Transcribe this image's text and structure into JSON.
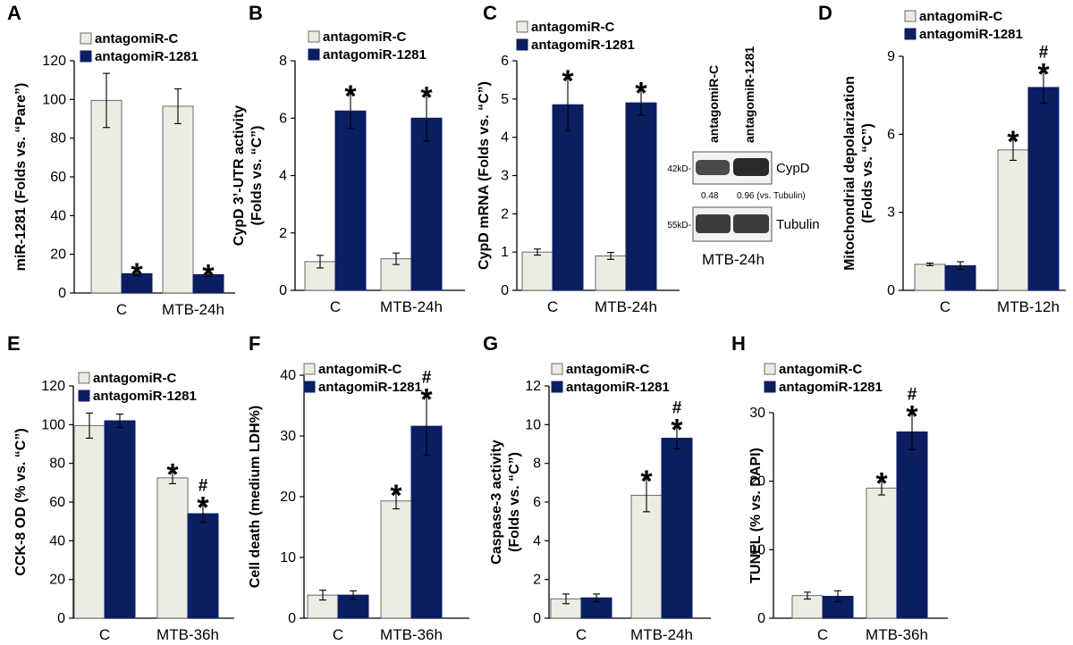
{
  "colors": {
    "control": "#ececE2",
    "treated": "#0b1e62",
    "axis": "#000000"
  },
  "chart_data": [
    {
      "panel": "A",
      "type": "bar",
      "categories": [
        "C",
        "MTB-24h"
      ],
      "series": [
        {
          "name": "antagomiR-C",
          "values": [
            99.5,
            96.5
          ],
          "errors": [
            14,
            9
          ],
          "marks": [
            "",
            ""
          ]
        },
        {
          "name": "antagomiR-1281",
          "values": [
            10,
            9.5
          ],
          "errors": [
            1,
            1
          ],
          "marks": [
            "*",
            "*"
          ]
        }
      ],
      "ylabel": "miR-1281 (Folds vs. “Pare”)",
      "ylim": [
        0,
        120
      ],
      "yticks": [
        0,
        20,
        40,
        60,
        80,
        100,
        120
      ],
      "legend": "top"
    },
    {
      "panel": "B",
      "type": "bar",
      "categories": [
        "C",
        "MTB-24h"
      ],
      "series": [
        {
          "name": "antagomiR-C",
          "values": [
            1.0,
            1.1
          ],
          "errors": [
            0.22,
            0.2
          ],
          "marks": [
            "",
            ""
          ]
        },
        {
          "name": "antagomiR-1281",
          "values": [
            6.25,
            6.0
          ],
          "errors": [
            0.6,
            0.8
          ],
          "marks": [
            "*",
            "*"
          ]
        }
      ],
      "ylabel": "CypD 3’-UTR activity (Folds vs. “C”)",
      "ylim": [
        0,
        8
      ],
      "yticks": [
        0,
        2,
        4,
        6,
        8
      ],
      "legend": "top"
    },
    {
      "panel": "C",
      "type": "bar",
      "categories": [
        "C",
        "MTB-24h"
      ],
      "series": [
        {
          "name": "antagomiR-C",
          "values": [
            1.0,
            0.9
          ],
          "errors": [
            0.08,
            0.09
          ],
          "marks": [
            "",
            ""
          ]
        },
        {
          "name": "antagomiR-1281",
          "values": [
            4.85,
            4.9
          ],
          "errors": [
            0.68,
            0.32
          ],
          "marks": [
            "*",
            "*"
          ]
        }
      ],
      "ylabel": "CypD mRNA (Folds vs. “C”)",
      "ylim": [
        0,
        6
      ],
      "yticks": [
        0,
        1,
        2,
        3,
        4,
        5,
        6
      ],
      "legend": "top"
    },
    {
      "panel": "D",
      "type": "bar",
      "categories": [
        "C",
        "MTB-12h"
      ],
      "series": [
        {
          "name": "antagomiR-C",
          "values": [
            1.0,
            5.4
          ],
          "errors": [
            0.05,
            0.4
          ],
          "marks": [
            "",
            "*"
          ]
        },
        {
          "name": "antagomiR-1281",
          "values": [
            0.95,
            7.8
          ],
          "errors": [
            0.15,
            0.6
          ],
          "marks": [
            "",
            "#*"
          ]
        }
      ],
      "ylabel": "Mitochondrial depolarization (Folds vs. “C”)",
      "ylim": [
        0,
        9
      ],
      "yticks": [
        0,
        3,
        6,
        9
      ],
      "legend": "top"
    },
    {
      "panel": "E",
      "type": "bar",
      "categories": [
        "C",
        "MTB-36h"
      ],
      "series": [
        {
          "name": "antagomiR-C",
          "values": [
            99.5,
            72.5
          ],
          "errors": [
            6.5,
            3
          ],
          "marks": [
            "",
            "*"
          ]
        },
        {
          "name": "antagomiR-1281",
          "values": [
            102,
            54
          ],
          "errors": [
            3.5,
            4.5
          ],
          "marks": [
            "",
            "#*"
          ]
        }
      ],
      "ylabel": "CCK-8 OD (% vs. “C”)",
      "ylim": [
        0,
        120
      ],
      "yticks": [
        0,
        20,
        40,
        60,
        80,
        100,
        120
      ],
      "legend": "top"
    },
    {
      "panel": "F",
      "type": "bar",
      "categories": [
        "C",
        "MTB-36h"
      ],
      "series": [
        {
          "name": "antagomiR-C",
          "values": [
            3.8,
            19.3
          ],
          "errors": [
            0.8,
            1.3
          ],
          "marks": [
            "",
            "*"
          ]
        },
        {
          "name": "antagomiR-1281",
          "values": [
            3.8,
            31.6
          ],
          "errors": [
            0.7,
            4.8
          ],
          "marks": [
            "",
            "#*"
          ]
        }
      ],
      "ylabel": "Cell death (medium LDH%)",
      "ylim": [
        0,
        40
      ],
      "yticks": [
        0,
        10,
        20,
        30,
        40
      ],
      "legend": "top"
    },
    {
      "panel": "G",
      "type": "bar",
      "categories": [
        "C",
        "MTB-24h"
      ],
      "series": [
        {
          "name": "antagomiR-C",
          "values": [
            1.0,
            6.35
          ],
          "errors": [
            0.25,
            0.85
          ],
          "marks": [
            "",
            "*"
          ]
        },
        {
          "name": "antagomiR-1281",
          "values": [
            1.05,
            9.3
          ],
          "errors": [
            0.2,
            0.55
          ],
          "marks": [
            "",
            "#*"
          ]
        }
      ],
      "ylabel": "Caspase-3 activity (Folds vs. “C”)",
      "ylim": [
        0,
        12
      ],
      "yticks": [
        0,
        2,
        4,
        6,
        8,
        10,
        12
      ],
      "legend": "top"
    },
    {
      "panel": "H",
      "type": "bar",
      "categories": [
        "C",
        "MTB-36h"
      ],
      "series": [
        {
          "name": "antagomiR-C",
          "values": [
            3.3,
            19.0
          ],
          "errors": [
            0.5,
            1.0
          ],
          "marks": [
            "",
            "*"
          ]
        },
        {
          "name": "antagomiR-1281",
          "values": [
            3.2,
            27.2
          ],
          "errors": [
            0.8,
            2.6
          ],
          "marks": [
            "",
            "#*"
          ]
        }
      ],
      "ylabel": "TUNEL (% vs. DAPI)",
      "ylim": [
        0,
        30
      ],
      "yticks": [
        0,
        10,
        20,
        30
      ],
      "legend": "top"
    }
  ],
  "blot": {
    "columns": [
      "antagomiR-C",
      "antagomiR-1281"
    ],
    "rows": [
      {
        "marker": "42kD-",
        "label": "CypD"
      },
      {
        "marker": "55kD-",
        "label": "Tubulin"
      }
    ],
    "quant": [
      "0.48",
      "0.96 (vs. Tubulin)"
    ],
    "caption": "MTB-24h"
  }
}
